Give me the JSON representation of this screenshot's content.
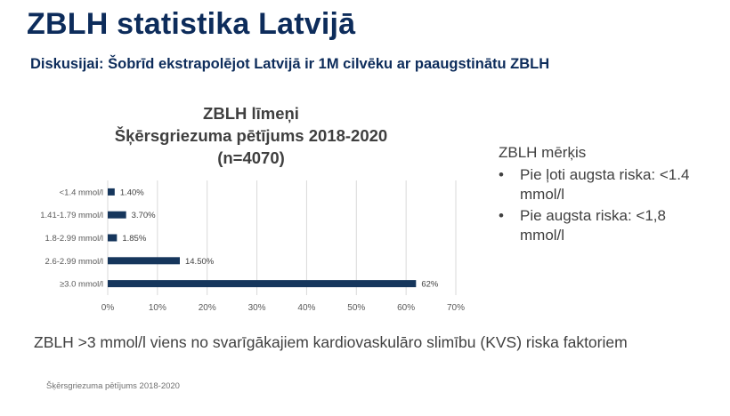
{
  "header": {
    "title": "ZBLH statistika Latvijā",
    "subtitle": "Diskusijai: Šobrīd ekstrapolējot Latvijā ir 1M cilvēku ar paaugstinātu ZBLH"
  },
  "chart_data": {
    "type": "bar",
    "orientation": "horizontal",
    "title_lines": [
      "ZBLH līmeņi",
      "Šķērsgriezuma pētījums 2018-2020",
      "(n=4070)"
    ],
    "categories": [
      "<1.4 mmol/l",
      "1.41-1.79 mmol/l",
      "1.8-2.99 mmol/l",
      "2.6-2.99 mmol/l",
      "≥3.0 mmol/l"
    ],
    "values": [
      1.4,
      3.7,
      1.85,
      14.5,
      62
    ],
    "data_labels": [
      "1.40%",
      "3.70%",
      "1.85%",
      "14.50%",
      "62%"
    ],
    "x_ticks": [
      "0%",
      "10%",
      "20%",
      "30%",
      "40%",
      "50%",
      "60%",
      "70%"
    ],
    "xlim": [
      0,
      70
    ],
    "grid": true,
    "bar_color": "#16365c"
  },
  "side_panel": {
    "heading": "ZBLH mērķis",
    "items": [
      {
        "bullet": "•",
        "text": "Pie ļoti augsta riska: <1.4 mmol/l"
      },
      {
        "bullet": "•",
        "text": "Pie augsta riska: <1,8 mmol/l"
      }
    ]
  },
  "footer": {
    "statement": "ZBLH >3 mmol/l viens no svarīgākajiem kardiovaskulāro slimību (KVS) riska faktoriem",
    "source": "Šķērsgriezuma pētījums 2018-2020"
  }
}
